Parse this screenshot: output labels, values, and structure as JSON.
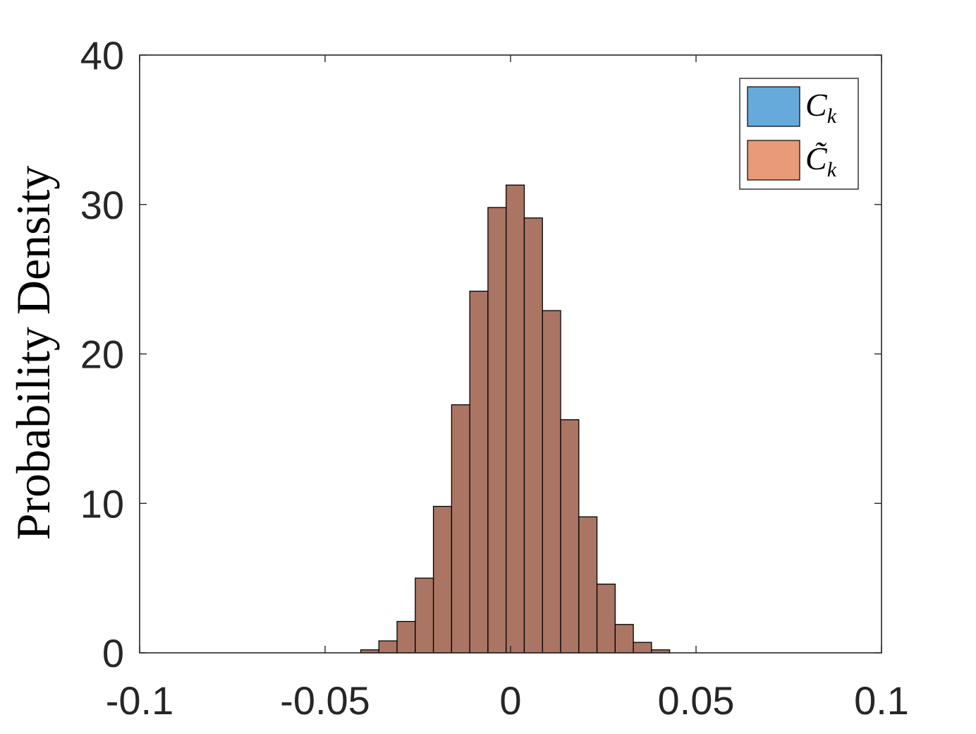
{
  "chart_data": {
    "type": "bar",
    "title": "",
    "xlabel": "",
    "ylabel": "Probability Density",
    "xlim": [
      -0.1,
      0.1
    ],
    "ylim": [
      0,
      40
    ],
    "xticks": [
      -0.1,
      -0.05,
      0,
      0.05,
      0.1
    ],
    "xtick_labels": [
      "-0.1",
      "-0.05",
      "0",
      "0.05",
      "0.1"
    ],
    "yticks": [
      0,
      10,
      20,
      30,
      40
    ],
    "ytick_labels": [
      "0",
      "10",
      "20",
      "30",
      "40"
    ],
    "grid": false,
    "legend_position": "top-right",
    "bin_edges": [
      -0.0404,
      -0.0355,
      -0.0306,
      -0.0257,
      -0.0208,
      -0.0159,
      -0.011,
      -0.0061,
      -0.0012,
      0.0037,
      0.0086,
      0.0135,
      0.0184,
      0.0233,
      0.0282,
      0.0331,
      0.038,
      0.0429
    ],
    "series": [
      {
        "name": "C_k",
        "legend_base": "C",
        "legend_sub": "k",
        "color": "#66aadb",
        "values": [
          0.2,
          0.8,
          2.1,
          5.0,
          9.8,
          16.6,
          24.2,
          29.8,
          31.3,
          29.1,
          22.9,
          15.6,
          9.1,
          4.6,
          1.9,
          0.7,
          0.2
        ]
      },
      {
        "name": "C̃_k",
        "legend_base": "C̃",
        "legend_sub": "k",
        "color": "#e99a78",
        "values": [
          0.2,
          0.8,
          2.1,
          5.0,
          9.8,
          16.6,
          24.2,
          29.8,
          31.3,
          29.1,
          22.9,
          15.6,
          9.1,
          4.6,
          1.9,
          0.7,
          0.2
        ]
      }
    ],
    "overlap_color": "#ab7563"
  }
}
